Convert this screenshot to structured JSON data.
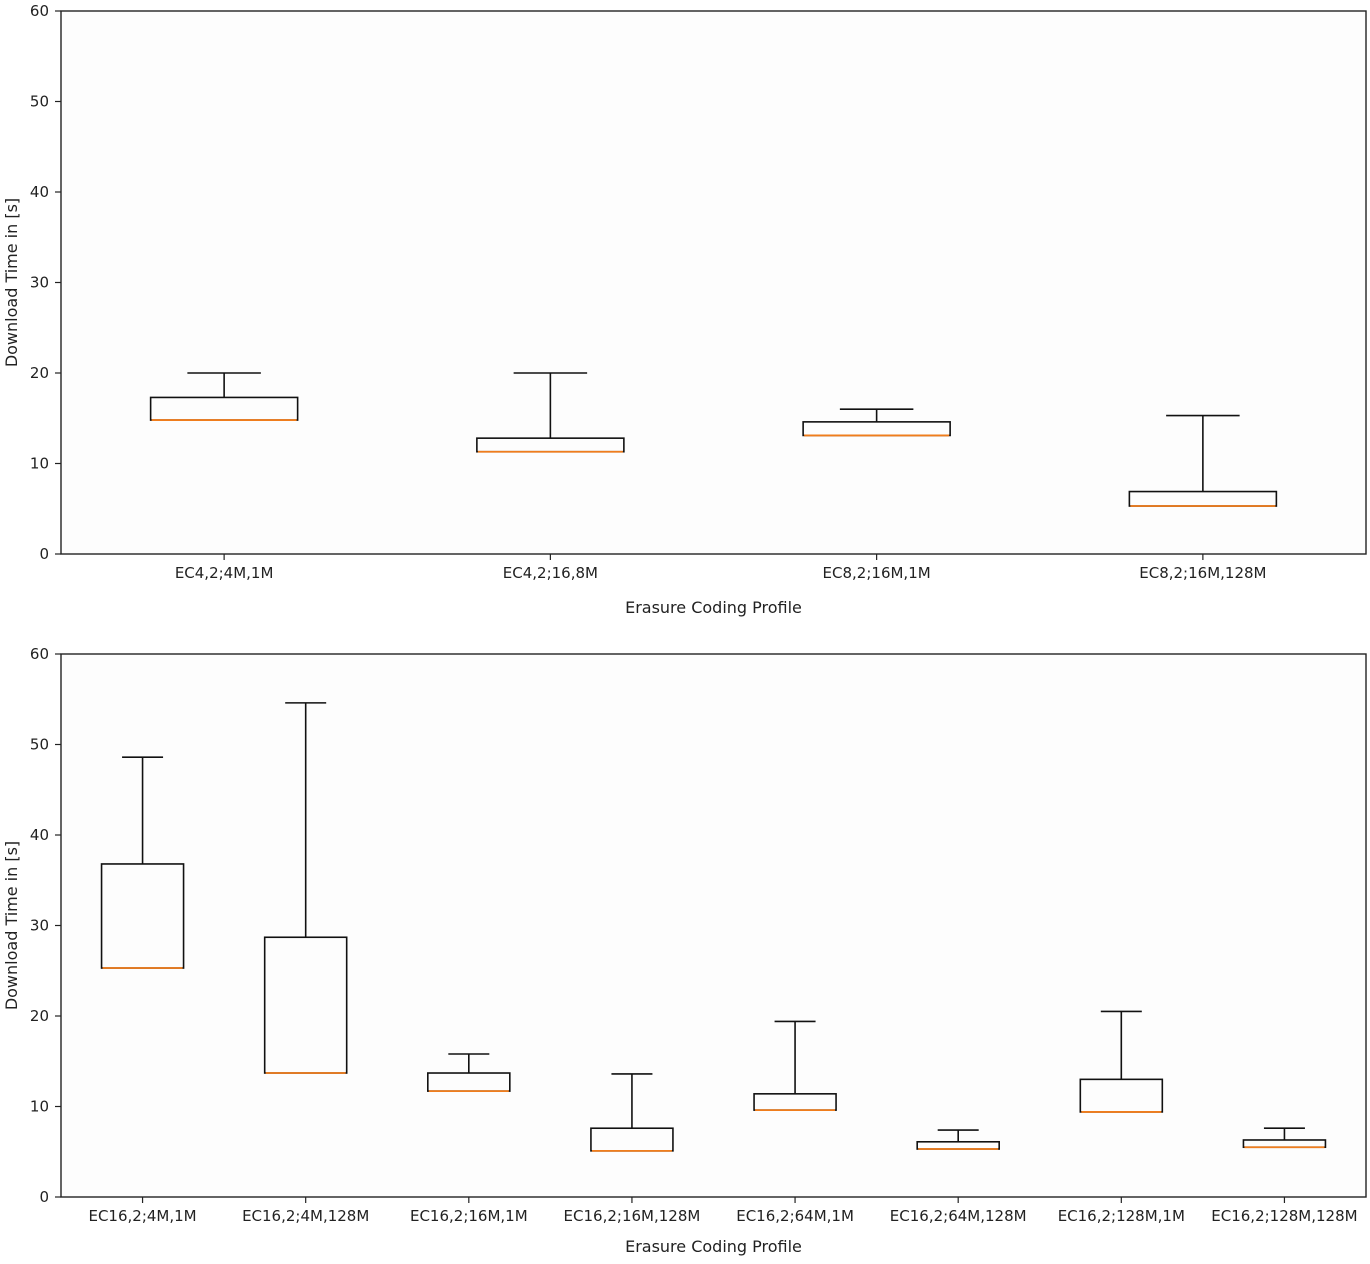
{
  "chart_data": [
    {
      "type": "box",
      "xlabel": "Erasure Coding Profile",
      "ylabel": "Download Time in [s]",
      "ylim": [
        0,
        60
      ],
      "yticks": [
        0,
        10,
        20,
        30,
        40,
        50,
        60
      ],
      "categories": [
        "EC4,2;4M,1M",
        "EC4,2;16,8M",
        "EC8,2;16M,1M",
        "EC8,2;16M,128M"
      ],
      "boxes": [
        {
          "min": 14.8,
          "q1": 14.8,
          "median": 14.8,
          "q3": 17.3,
          "max": 20.0
        },
        {
          "min": 11.3,
          "q1": 11.3,
          "median": 11.3,
          "q3": 12.8,
          "max": 20.0
        },
        {
          "min": 13.1,
          "q1": 13.1,
          "median": 13.1,
          "q3": 14.6,
          "max": 16.0
        },
        {
          "min": 5.3,
          "q1": 5.3,
          "median": 5.3,
          "q3": 6.9,
          "max": 15.3
        }
      ]
    },
    {
      "type": "box",
      "xlabel": "Erasure Coding Profile",
      "ylabel": "Download Time in [s]",
      "ylim": [
        0,
        60
      ],
      "yticks": [
        0,
        10,
        20,
        30,
        40,
        50,
        60
      ],
      "categories": [
        "EC16,2;4M,1M",
        "EC16,2;4M,128M",
        "EC16,2;16M,1M",
        "EC16,2;16M,128M",
        "EC16,2;64M,1M",
        "EC16,2;64M,128M",
        "EC16,2;128M,1M",
        "EC16,2;128M,128M"
      ],
      "boxes": [
        {
          "min": 25.3,
          "q1": 25.3,
          "median": 25.3,
          "q3": 36.8,
          "max": 48.6
        },
        {
          "min": 13.7,
          "q1": 13.7,
          "median": 13.7,
          "q3": 28.7,
          "max": 54.6
        },
        {
          "min": 11.7,
          "q1": 11.7,
          "median": 11.7,
          "q3": 13.7,
          "max": 15.8
        },
        {
          "min": 5.1,
          "q1": 5.1,
          "median": 5.1,
          "q3": 7.6,
          "max": 13.6
        },
        {
          "min": 9.6,
          "q1": 9.6,
          "median": 9.6,
          "q3": 11.4,
          "max": 19.4
        },
        {
          "min": 5.3,
          "q1": 5.3,
          "median": 5.3,
          "q3": 6.1,
          "max": 7.4
        },
        {
          "min": 9.4,
          "q1": 9.4,
          "median": 9.4,
          "q3": 13.0,
          "max": 20.5
        },
        {
          "min": 5.5,
          "q1": 5.5,
          "median": 5.5,
          "q3": 6.3,
          "max": 7.6
        }
      ]
    }
  ]
}
